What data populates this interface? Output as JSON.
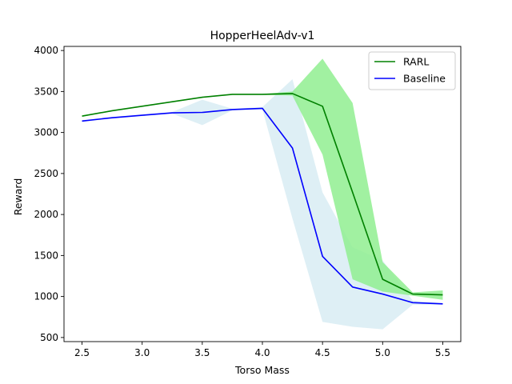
{
  "chart_data": {
    "type": "line",
    "title": "HopperHeelAdv-v1",
    "xlabel": "Torso Mass",
    "ylabel": "Reward",
    "xlim": [
      2.35,
      5.65
    ],
    "ylim": [
      450,
      4050
    ],
    "xticks": [
      "2.5",
      "3.0",
      "3.5",
      "4.0",
      "4.5",
      "5.0",
      "5.5"
    ],
    "yticks": [
      "500",
      "1000",
      "1500",
      "2000",
      "2500",
      "3000",
      "3500",
      "4000"
    ],
    "x": [
      2.5,
      2.75,
      3.0,
      3.25,
      3.5,
      3.75,
      4.0,
      4.25,
      4.5,
      4.75,
      5.0,
      5.25,
      5.5
    ],
    "legend_position": "top-right",
    "grid": false,
    "series": [
      {
        "name": "RARL",
        "color": "#008000",
        "band_color": "#90ee90",
        "values": [
          3200,
          3265,
          3320,
          3375,
          3430,
          3465,
          3465,
          3475,
          3320,
          2270,
          1210,
          1030,
          1020
        ],
        "upper": [
          3210,
          3270,
          3325,
          3380,
          3435,
          3470,
          3470,
          3500,
          3900,
          3360,
          1420,
          1050,
          1075
        ],
        "lower": [
          3190,
          3260,
          3315,
          3370,
          3425,
          3460,
          3460,
          3450,
          2730,
          1210,
          1060,
          1010,
          960
        ]
      },
      {
        "name": "Baseline",
        "color": "#0000ff",
        "band_color": "#add8e6",
        "values": [
          3140,
          3180,
          3210,
          3240,
          3245,
          3280,
          3295,
          2810,
          1490,
          1115,
          1030,
          925,
          910
        ],
        "upper": [
          3150,
          3190,
          3220,
          3250,
          3400,
          3290,
          3310,
          3650,
          2270,
          1600,
          1440,
          950,
          920
        ],
        "lower": [
          3130,
          3170,
          3200,
          3230,
          3090,
          3270,
          3280,
          1950,
          690,
          630,
          600,
          900,
          900
        ]
      }
    ]
  }
}
